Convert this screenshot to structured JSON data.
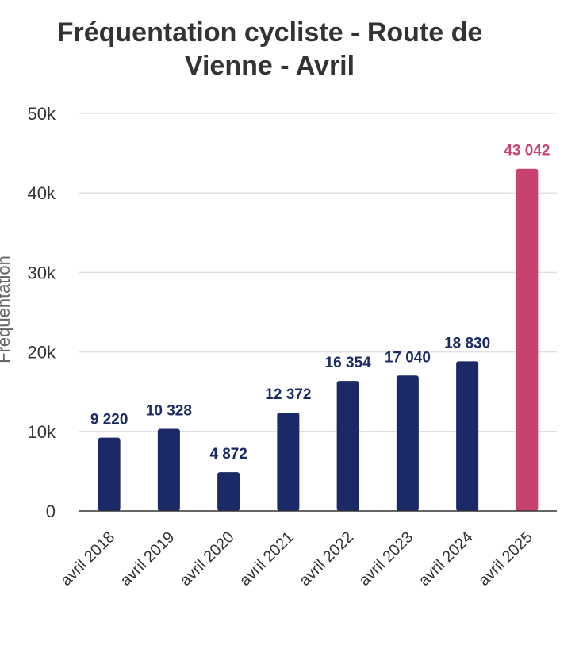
{
  "chart_data": {
    "type": "bar",
    "title_lines": [
      "Fréquentation cycliste - Route de",
      "Vienne - Avril"
    ],
    "ylabel": "Fréquentation",
    "categories": [
      "avril 2018",
      "avril 2019",
      "avril 2020",
      "avril 2021",
      "avril 2022",
      "avril 2023",
      "avril 2024",
      "avril 2025"
    ],
    "values": [
      9220,
      10328,
      4872,
      12372,
      16354,
      17040,
      18830,
      43042
    ],
    "data_labels": [
      "9 220",
      "10 328",
      "4 872",
      "12 372",
      "16 354",
      "17 040",
      "18 830",
      "43 042"
    ],
    "y_ticks": [
      0,
      10000,
      20000,
      30000,
      40000,
      50000
    ],
    "y_tick_labels": [
      "0",
      "10k",
      "20k",
      "30k",
      "40k",
      "50k"
    ],
    "ylim": [
      0,
      50000
    ],
    "grid": true,
    "colors": {
      "bar": "#1b2a66",
      "highlight_bar": "#c8426f",
      "label": "#1b2a66",
      "highlight_label": "#c8426f",
      "grid": "#e0e0e0",
      "axis": "#333333"
    },
    "highlight_index": 7
  }
}
